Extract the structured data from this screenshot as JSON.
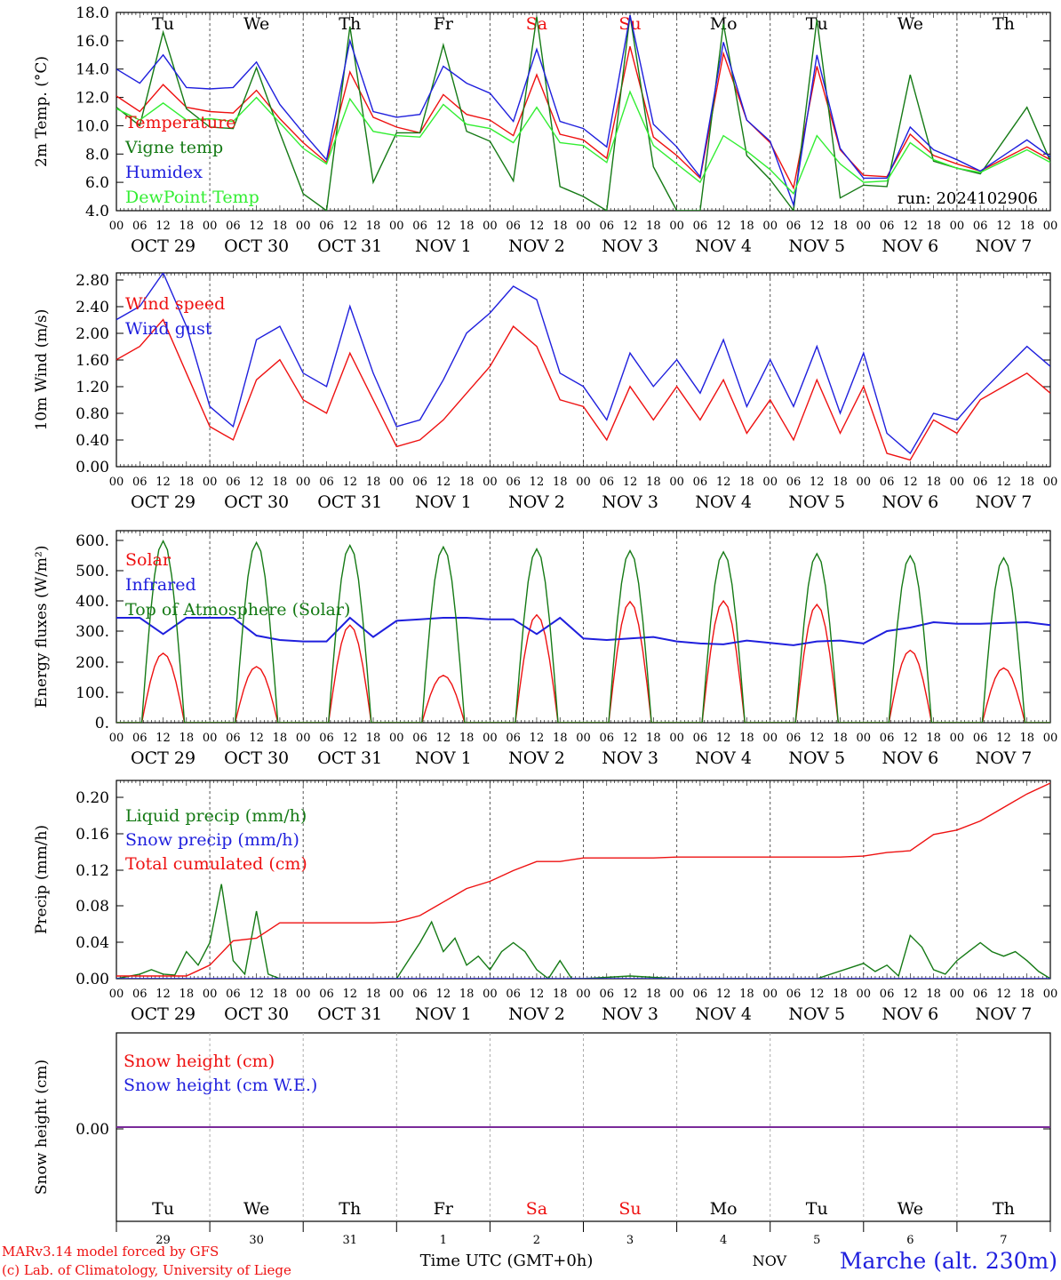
{
  "run_label": "run: 2024102906",
  "footer": {
    "model": "MARv3.14 model forced by GFS",
    "copyright": "(c) Lab. of Climatology, University of Liege",
    "xlabel": "Time UTC (GMT+0h)",
    "month_short": "NOV",
    "station": "Marche (alt. 230m)"
  },
  "colors": {
    "red": "#ee1111",
    "green": "#157a15",
    "blue": "#1f1fdd",
    "lightgreen": "#33ee33",
    "purple": "#7a2a9a"
  },
  "days": {
    "weekday": [
      "Tu",
      "We",
      "Th",
      "Fr",
      "Sa",
      "Su",
      "Mo",
      "Tu",
      "We",
      "Th"
    ],
    "weekend": [
      false,
      false,
      false,
      false,
      true,
      true,
      false,
      false,
      false,
      false
    ],
    "date": [
      "OCT 29",
      "OCT 30",
      "OCT 31",
      "NOV  1",
      "NOV  2",
      "NOV  3",
      "NOV  4",
      "NOV  5",
      "NOV  6",
      "NOV  7"
    ],
    "daynum": [
      "29",
      "30",
      "31",
      "1",
      "2",
      "3",
      "4",
      "5",
      "6",
      "7"
    ]
  },
  "hour_labels": [
    "00",
    "06",
    "12",
    "18"
  ],
  "chart_data": [
    {
      "type": "line",
      "ylabel": "2m Temp. (°C)",
      "ylim": [
        4,
        18
      ],
      "yticks": [
        "4.0",
        "6.0",
        "8.0",
        "10.0",
        "12.0",
        "14.0",
        "16.0",
        "18.0"
      ],
      "x_unit": "hours since 2024-10-29 00 UTC",
      "series": [
        {
          "name": "Temperature",
          "color": "red",
          "x": [
            0,
            6,
            12,
            18,
            24,
            30,
            36,
            42,
            48,
            54,
            60,
            66,
            72,
            78,
            84,
            90,
            96,
            102,
            108,
            114,
            120,
            126,
            132,
            138,
            144,
            150,
            156,
            162,
            168,
            174,
            180,
            186,
            192,
            198,
            204,
            210,
            216,
            222,
            234,
            240
          ],
          "y": [
            12.1,
            11.0,
            12.9,
            11.3,
            11.0,
            10.9,
            12.5,
            10.5,
            8.8,
            7.4,
            13.8,
            10.6,
            9.9,
            9.5,
            12.2,
            10.8,
            10.4,
            9.3,
            13.6,
            9.4,
            9.0,
            7.7,
            15.6,
            9.2,
            7.9,
            6.3,
            15.1,
            10.4,
            8.8,
            5.6,
            14.2,
            8.3,
            6.5,
            6.4,
            9.4,
            7.9,
            7.3,
            6.8,
            8.5,
            7.6
          ]
        },
        {
          "name": "Vigne temp",
          "color": "green",
          "x": [
            0,
            6,
            12,
            18,
            24,
            30,
            36,
            42,
            48,
            54,
            60,
            66,
            72,
            78,
            84,
            90,
            96,
            102,
            108,
            114,
            120,
            126,
            132,
            138,
            144,
            150,
            156,
            162,
            168,
            174,
            180,
            186,
            192,
            198,
            204,
            210,
            216,
            222,
            234,
            240
          ],
          "y": [
            11.3,
            10.0,
            16.6,
            11.2,
            9.9,
            9.8,
            14.1,
            9.5,
            5.2,
            4.0,
            17.0,
            6.0,
            9.5,
            9.5,
            15.7,
            9.6,
            8.9,
            6.1,
            17.7,
            5.7,
            5.0,
            4.0,
            17.8,
            7.1,
            4.0,
            4.0,
            17.2,
            7.9,
            6.2,
            4.0,
            17.5,
            4.9,
            5.8,
            5.7,
            13.6,
            7.5,
            7.0,
            6.6,
            11.3,
            7.5
          ]
        },
        {
          "name": "Humidex",
          "color": "blue",
          "x": [
            0,
            6,
            12,
            18,
            24,
            30,
            36,
            42,
            48,
            54,
            60,
            66,
            72,
            78,
            84,
            90,
            96,
            102,
            108,
            114,
            120,
            126,
            132,
            138,
            144,
            150,
            156,
            162,
            168,
            174,
            180,
            186,
            192,
            198,
            204,
            210,
            216,
            222,
            234,
            240
          ],
          "y": [
            14.0,
            13.0,
            15.0,
            12.7,
            12.6,
            12.7,
            14.5,
            11.5,
            9.5,
            7.6,
            16.0,
            11.0,
            10.6,
            10.8,
            14.2,
            13.0,
            12.3,
            10.3,
            15.4,
            10.3,
            9.8,
            8.5,
            17.8,
            10.1,
            8.5,
            6.4,
            15.9,
            10.4,
            8.9,
            4.4,
            15.0,
            8.4,
            6.3,
            6.3,
            9.9,
            8.3,
            7.6,
            6.8,
            9.0,
            7.8
          ]
        },
        {
          "name": "DewPoint Temp",
          "color": "lightgreen",
          "x": [
            0,
            6,
            12,
            18,
            24,
            30,
            36,
            42,
            48,
            54,
            60,
            66,
            72,
            78,
            84,
            90,
            96,
            102,
            108,
            114,
            120,
            126,
            132,
            138,
            144,
            150,
            156,
            162,
            168,
            174,
            180,
            186,
            192,
            198,
            204,
            210,
            216,
            222,
            234,
            240
          ],
          "y": [
            11.2,
            10.4,
            11.6,
            10.4,
            10.5,
            10.3,
            12.0,
            10.2,
            8.4,
            7.3,
            11.9,
            9.6,
            9.3,
            9.2,
            11.5,
            10.1,
            9.8,
            8.8,
            11.3,
            8.8,
            8.6,
            7.4,
            12.4,
            8.6,
            7.3,
            6.0,
            9.3,
            8.2,
            6.9,
            5.2,
            9.3,
            7.3,
            6.0,
            6.1,
            8.8,
            7.6,
            7.0,
            6.7,
            8.3,
            7.4
          ]
        }
      ]
    },
    {
      "type": "line",
      "ylabel": "10m Wind (m/s)",
      "ylim": [
        0,
        2.9
      ],
      "yticks": [
        "0.00",
        "0.40",
        "0.80",
        "1.20",
        "1.60",
        "2.00",
        "2.40",
        "2.80"
      ],
      "x_unit": "hours since 2024-10-29 00 UTC",
      "series": [
        {
          "name": "Wind speed",
          "color": "red",
          "x": [
            0,
            6,
            12,
            18,
            24,
            30,
            36,
            42,
            48,
            54,
            60,
            66,
            72,
            78,
            84,
            90,
            96,
            102,
            108,
            114,
            120,
            126,
            132,
            138,
            144,
            150,
            156,
            162,
            168,
            174,
            180,
            186,
            192,
            198,
            204,
            210,
            216,
            222,
            234,
            240
          ],
          "y": [
            1.6,
            1.8,
            2.2,
            1.4,
            0.6,
            0.4,
            1.3,
            1.6,
            1.0,
            0.8,
            1.7,
            1.0,
            0.3,
            0.4,
            0.7,
            1.1,
            1.5,
            2.1,
            1.8,
            1.0,
            0.9,
            0.4,
            1.2,
            0.7,
            1.2,
            0.7,
            1.3,
            0.5,
            1.0,
            0.4,
            1.3,
            0.5,
            1.2,
            0.2,
            0.1,
            0.7,
            0.5,
            1.0,
            1.4,
            1.1
          ]
        },
        {
          "name": "Wind gust",
          "color": "blue",
          "x": [
            0,
            6,
            12,
            18,
            24,
            30,
            36,
            42,
            48,
            54,
            60,
            66,
            72,
            78,
            84,
            90,
            96,
            102,
            108,
            114,
            120,
            126,
            132,
            138,
            144,
            150,
            156,
            162,
            168,
            174,
            180,
            186,
            192,
            198,
            204,
            210,
            216,
            222,
            234,
            240
          ],
          "y": [
            2.2,
            2.4,
            2.9,
            2.1,
            0.9,
            0.6,
            1.9,
            2.1,
            1.4,
            1.2,
            2.4,
            1.4,
            0.6,
            0.7,
            1.3,
            2.0,
            2.3,
            2.7,
            2.5,
            1.4,
            1.2,
            0.7,
            1.7,
            1.2,
            1.6,
            1.1,
            1.9,
            0.9,
            1.6,
            0.9,
            1.8,
            0.8,
            1.7,
            0.5,
            0.2,
            0.8,
            0.7,
            1.1,
            1.8,
            1.5
          ]
        }
      ]
    },
    {
      "type": "line",
      "ylabel": "Energy fluxes (W/m²)",
      "ylim": [
        0,
        650
      ],
      "yticks": [
        "0.",
        "100.",
        "200.",
        "300.",
        "400.",
        "500.",
        "600."
      ],
      "x_unit": "hours since 2024-10-29 00 UTC",
      "peaks": {
        "toa": [
          615,
          610,
          600,
          595,
          588,
          582,
          578,
          572,
          565,
          558
        ],
        "solar": [
          235,
          190,
          330,
          160,
          365,
          410,
          412,
          400,
          245,
          185
        ]
      },
      "series": [
        {
          "name": "Solar",
          "color": "red",
          "derived_from": "peaks.solar",
          "x": [],
          "y": []
        },
        {
          "name": "Infrared",
          "color": "blue",
          "x": [
            0,
            6,
            12,
            18,
            24,
            30,
            36,
            42,
            48,
            54,
            60,
            66,
            72,
            78,
            84,
            90,
            96,
            102,
            108,
            114,
            120,
            126,
            132,
            138,
            144,
            150,
            156,
            162,
            168,
            174,
            180,
            186,
            192,
            198,
            204,
            210,
            216,
            222,
            234,
            240
          ],
          "y": [
            355,
            355,
            300,
            355,
            355,
            355,
            295,
            280,
            275,
            275,
            355,
            290,
            345,
            350,
            355,
            355,
            350,
            350,
            300,
            355,
            285,
            280,
            285,
            290,
            275,
            268,
            265,
            278,
            270,
            262,
            275,
            278,
            268,
            310,
            322,
            340,
            335,
            335,
            340,
            330
          ]
        },
        {
          "name": "Top of Atmosphere (Solar)",
          "color": "green",
          "derived_from": "peaks.toa",
          "x": [],
          "y": []
        }
      ]
    },
    {
      "type": "line",
      "ylabel": "Precip (mm/h)",
      "ylim": [
        0,
        0.22
      ],
      "yticks": [
        "0.00",
        "0.04",
        "0.08",
        "0.12",
        "0.16",
        "0.20"
      ],
      "x_unit": "hours since 2024-10-29 00 UTC",
      "series": [
        {
          "name": "Liquid precip (mm/h)",
          "color": "green",
          "x": [
            0,
            6,
            9,
            12,
            15,
            18,
            21,
            24,
            27,
            30,
            33,
            36,
            39,
            42,
            48,
            54,
            60,
            66,
            72,
            75,
            78,
            81,
            84,
            87,
            90,
            93,
            96,
            99,
            102,
            105,
            108,
            111,
            114,
            117,
            120,
            132,
            144,
            168,
            180,
            192,
            195,
            198,
            201,
            204,
            207,
            210,
            213,
            216,
            219,
            222,
            225,
            228,
            231,
            234,
            237,
            240
          ],
          "y": [
            0,
            0.005,
            0.01,
            0.005,
            0.004,
            0.03,
            0.015,
            0.04,
            0.105,
            0.02,
            0.005,
            0.075,
            0.005,
            0,
            0,
            0,
            0,
            0,
            0,
            0.02,
            0.04,
            0.063,
            0.03,
            0.045,
            0.015,
            0.025,
            0.01,
            0.03,
            0.04,
            0.03,
            0.01,
            0,
            0.02,
            0,
            0,
            0.003,
            0,
            0,
            0,
            0.017,
            0.008,
            0.015,
            0.003,
            0.048,
            0.035,
            0.01,
            0.005,
            0.02,
            0.03,
            0.04,
            0.03,
            0.025,
            0.03,
            0.02,
            0.008,
            0
          ]
        },
        {
          "name": "Snow precip (mm/h)",
          "color": "blue",
          "x": [
            0,
            240
          ],
          "y": [
            0,
            0
          ]
        },
        {
          "name": "Total cumulated (cm)",
          "color": "red",
          "x": [
            0,
            6,
            12,
            18,
            24,
            30,
            36,
            42,
            48,
            54,
            60,
            66,
            72,
            78,
            84,
            90,
            96,
            102,
            108,
            114,
            120,
            126,
            132,
            138,
            144,
            150,
            156,
            162,
            168,
            174,
            180,
            186,
            192,
            198,
            204,
            210,
            216,
            222,
            228,
            234,
            240
          ],
          "y": [
            0.003,
            0.003,
            0.003,
            0.003,
            0.015,
            0.042,
            0.045,
            0.062,
            0.062,
            0.062,
            0.062,
            0.062,
            0.063,
            0.07,
            0.085,
            0.1,
            0.108,
            0.12,
            0.13,
            0.13,
            0.134,
            0.134,
            0.134,
            0.134,
            0.135,
            0.135,
            0.135,
            0.135,
            0.135,
            0.135,
            0.135,
            0.135,
            0.136,
            0.14,
            0.142,
            0.16,
            0.165,
            0.175,
            0.19,
            0.205,
            0.217
          ]
        }
      ]
    },
    {
      "type": "line",
      "ylabel": "Snow height (cm)",
      "ylim": [
        -1,
        1
      ],
      "yticks": [
        "0.00"
      ],
      "x_unit": "hours since 2024-10-29 00 UTC",
      "series": [
        {
          "name": "Snow height (cm)",
          "color": "red",
          "x": [
            0,
            240
          ],
          "y": [
            0,
            0
          ]
        },
        {
          "name": "Snow height (cm W.E.)",
          "color": "blue",
          "x": [
            0,
            240
          ],
          "y": [
            0,
            0
          ]
        }
      ]
    }
  ]
}
